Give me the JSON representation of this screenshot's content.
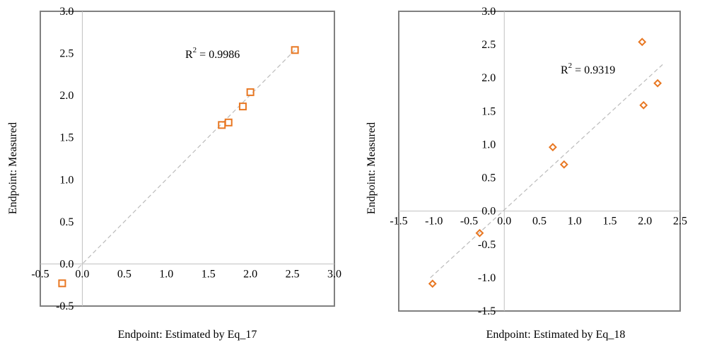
{
  "chart_data": [
    {
      "type": "scatter",
      "xlabel": "Endpoint: Estimated by Eq_17",
      "ylabel": "Endpoint: Measured",
      "xlim": [
        -0.5,
        3.0
      ],
      "ylim": [
        -0.5,
        3.0
      ],
      "xticks": [
        "-0.5",
        "0.0",
        "0.5",
        "1.0",
        "1.5",
        "2.0",
        "2.5",
        "3.0"
      ],
      "yticks": [
        "-0.5",
        "0.0",
        "0.5",
        "1.0",
        "1.5",
        "2.0",
        "2.5",
        "3.0"
      ],
      "xtick_values": [
        -0.5,
        0,
        0.5,
        1,
        1.5,
        2,
        2.5,
        3
      ],
      "ytick_values": [
        -0.5,
        0,
        0.5,
        1,
        1.5,
        2,
        2.5,
        3
      ],
      "marker": "square",
      "marker_color": "#E87722",
      "points": [
        {
          "x": -0.24,
          "y": -0.23
        },
        {
          "x": 1.66,
          "y": 1.65
        },
        {
          "x": 1.74,
          "y": 1.68
        },
        {
          "x": 1.91,
          "y": 1.87
        },
        {
          "x": 2.0,
          "y": 2.04
        },
        {
          "x": 2.53,
          "y": 2.54
        }
      ],
      "trendline": {
        "style": "dashed",
        "color": "#bbbbbb",
        "from": [
          -0.05,
          -0.05
        ],
        "to": [
          2.53,
          2.54
        ]
      },
      "annotation": {
        "r2_prefix": "R",
        "r2_exp": "2",
        "r2_value": " = 0.9986"
      }
    },
    {
      "type": "scatter",
      "xlabel": "Endpoint: Estimated by Eq_18",
      "ylabel": "Endpoint: Measured",
      "xlim": [
        -1.5,
        2.5
      ],
      "ylim": [
        -1.5,
        3.0
      ],
      "xticks": [
        "-1.5",
        "-1.0",
        "-0.5",
        "0.0",
        "0.5",
        "1.0",
        "1.5",
        "2.0",
        "2.5"
      ],
      "yticks": [
        "-1.5",
        "-1.0",
        "-0.5",
        "0.0",
        "0.5",
        "1.0",
        "1.5",
        "2.0",
        "2.5",
        "3.0"
      ],
      "xtick_values": [
        -1.5,
        -1,
        -0.5,
        0,
        0.5,
        1,
        1.5,
        2,
        2.5
      ],
      "ytick_values": [
        -1.5,
        -1,
        -0.5,
        0,
        0.5,
        1,
        1.5,
        2,
        2.5,
        3
      ],
      "marker": "diamond",
      "marker_color": "#E87722",
      "points": [
        {
          "x": -1.02,
          "y": -1.09
        },
        {
          "x": -0.35,
          "y": -0.33
        },
        {
          "x": 0.69,
          "y": 0.96
        },
        {
          "x": 0.85,
          "y": 0.7
        },
        {
          "x": 1.96,
          "y": 2.54
        },
        {
          "x": 1.98,
          "y": 1.59
        },
        {
          "x": 2.18,
          "y": 1.92
        }
      ],
      "trendline": {
        "style": "dashed",
        "color": "#bbbbbb",
        "from": [
          -1.05,
          -1.0
        ],
        "to": [
          2.25,
          2.2
        ]
      },
      "annotation": {
        "r2_prefix": "R",
        "r2_exp": "2",
        "r2_value": " = 0.9319"
      }
    }
  ]
}
